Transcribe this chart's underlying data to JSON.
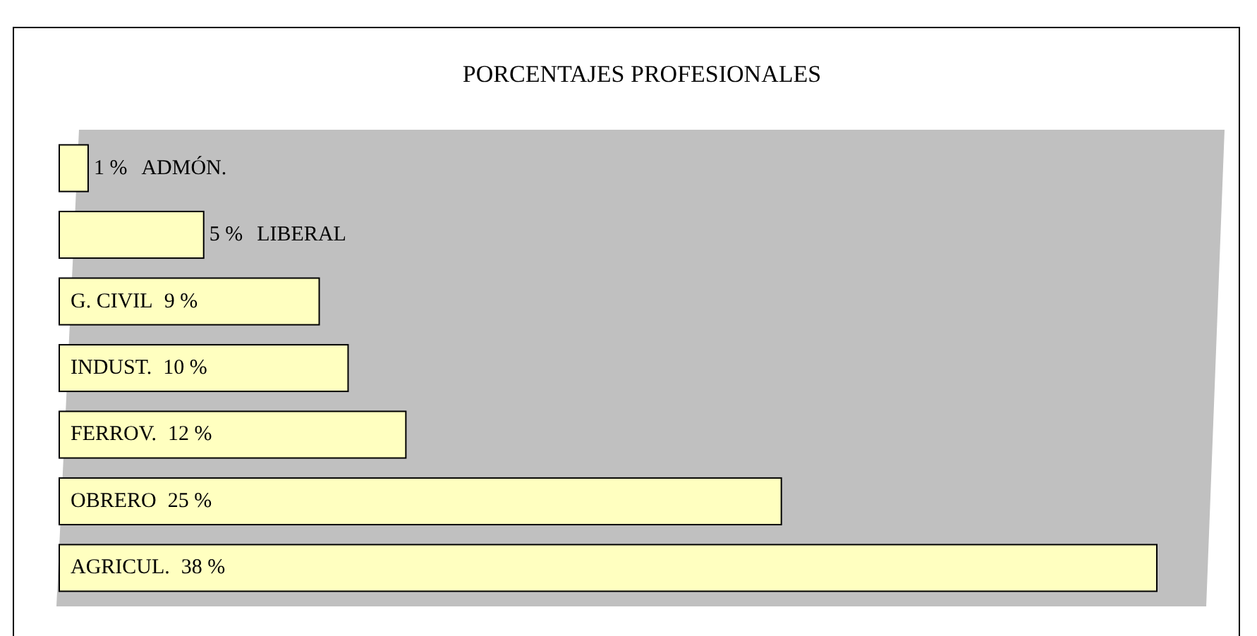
{
  "chart_data": {
    "type": "bar",
    "orientation": "horizontal",
    "title": "PORCENTAJES PROFESIONALES",
    "categories": [
      "ADMÓN.",
      "LIBERAL",
      "G. CIVIL",
      "INDUST.",
      "FERROV.",
      "OBRERO",
      "AGRICUL."
    ],
    "values": [
      1,
      5,
      9,
      10,
      12,
      25,
      38
    ],
    "value_labels": [
      "1 %",
      "5 %",
      "9 %",
      "10 %",
      "12 %",
      "25 %",
      "38 %"
    ],
    "color": "#ffffc0"
  }
}
